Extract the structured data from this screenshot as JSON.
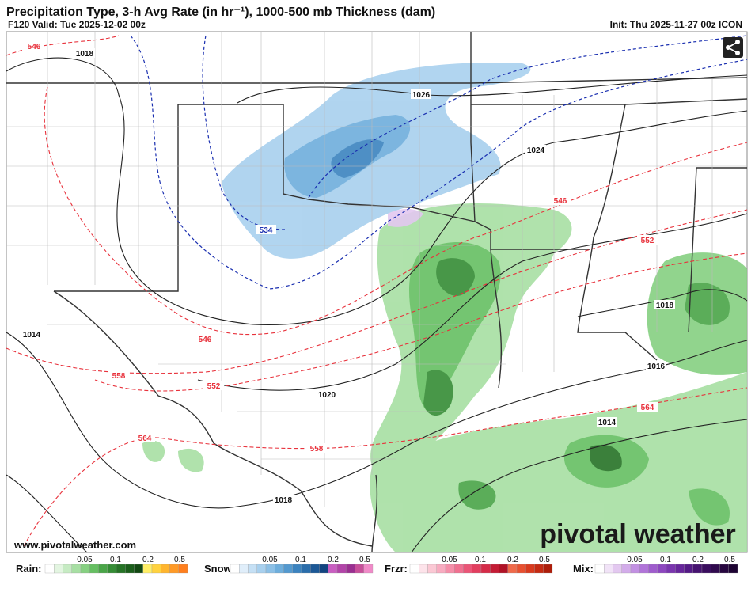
{
  "header": {
    "title": "Precipitation Type, 3-h Avg Rate (in hr⁻¹), 1000-500 mb Thickness (dam)",
    "valid": "F120 Valid: Tue 2025-12-02 00z",
    "init": "Init: Thu 2025-11-27 00z ICON"
  },
  "map": {
    "contour_labels": [
      {
        "text": "546",
        "color": "#e8323c"
      },
      {
        "text": "1018",
        "color": "#111111"
      },
      {
        "text": "1026",
        "color": "#111111"
      },
      {
        "text": "1024",
        "color": "#111111"
      },
      {
        "text": "534",
        "color": "#1a2fb0"
      },
      {
        "text": "546",
        "color": "#e8323c"
      },
      {
        "text": "552",
        "color": "#e8323c"
      },
      {
        "text": "1018",
        "color": "#111111"
      },
      {
        "text": "1014",
        "color": "#111111"
      },
      {
        "text": "546",
        "color": "#e8323c"
      },
      {
        "text": "558",
        "color": "#e8323c"
      },
      {
        "text": "552",
        "color": "#e8323c"
      },
      {
        "text": "1020",
        "color": "#111111"
      },
      {
        "text": "564",
        "color": "#e8323c"
      },
      {
        "text": "558",
        "color": "#e8323c"
      },
      {
        "text": "1018",
        "color": "#111111"
      },
      {
        "text": "1016",
        "color": "#111111"
      },
      {
        "text": "564",
        "color": "#e8323c"
      },
      {
        "text": "1014",
        "color": "#111111"
      }
    ],
    "watermark": "pivotal weather",
    "website": "www.pivotalweather.com"
  },
  "legend": [
    {
      "label": "Rain:",
      "ticks": [
        0.05,
        0.1,
        0.2,
        0.5
      ],
      "colors": [
        "#ffffff",
        "#e3f5e1",
        "#c6ebc3",
        "#a7dfa3",
        "#86d081",
        "#66bf62",
        "#4aa548",
        "#358c35",
        "#267326",
        "#1b5e1b",
        "#124812",
        "#ffee66",
        "#ffd23f",
        "#ffb52e",
        "#ff9a26",
        "#ff7f1e"
      ]
    },
    {
      "label": "Snow:",
      "ticks": [
        0.05,
        0.1,
        0.2,
        0.5
      ],
      "colors": [
        "#ffffff",
        "#e0eefa",
        "#c5e0f5",
        "#a8d0ee",
        "#8cc0e6",
        "#6eaedc",
        "#5399cf",
        "#3b83bf",
        "#2a6dab",
        "#1c5896",
        "#124480",
        "#c95ec1",
        "#b244a8",
        "#9a2f90",
        "#c74f9a",
        "#f08ac8"
      ]
    },
    {
      "label": "Frzr:",
      "ticks": [
        0.05,
        0.1,
        0.2,
        0.5
      ],
      "colors": [
        "#ffffff",
        "#fde3ea",
        "#fbc8d4",
        "#f8abc0",
        "#f58ea9",
        "#f07090",
        "#ea5577",
        "#e23e5f",
        "#d52b48",
        "#c41c35",
        "#b01226",
        "#f06a4a",
        "#e85030",
        "#d93a1e",
        "#c52a12",
        "#ad1d0a"
      ]
    },
    {
      "label": "Mix:",
      "ticks": [
        0.05,
        0.1,
        0.2,
        0.5
      ],
      "colors": [
        "#ffffff",
        "#f1e3f7",
        "#e3c8f0",
        "#d3acea",
        "#c290e2",
        "#b174d9",
        "#9f5ccd",
        "#8d47bf",
        "#7a35ae",
        "#67269b",
        "#541a86",
        "#461370",
        "#3a0e5e",
        "#300a4e",
        "#26063f",
        "#1d0332"
      ]
    }
  ]
}
